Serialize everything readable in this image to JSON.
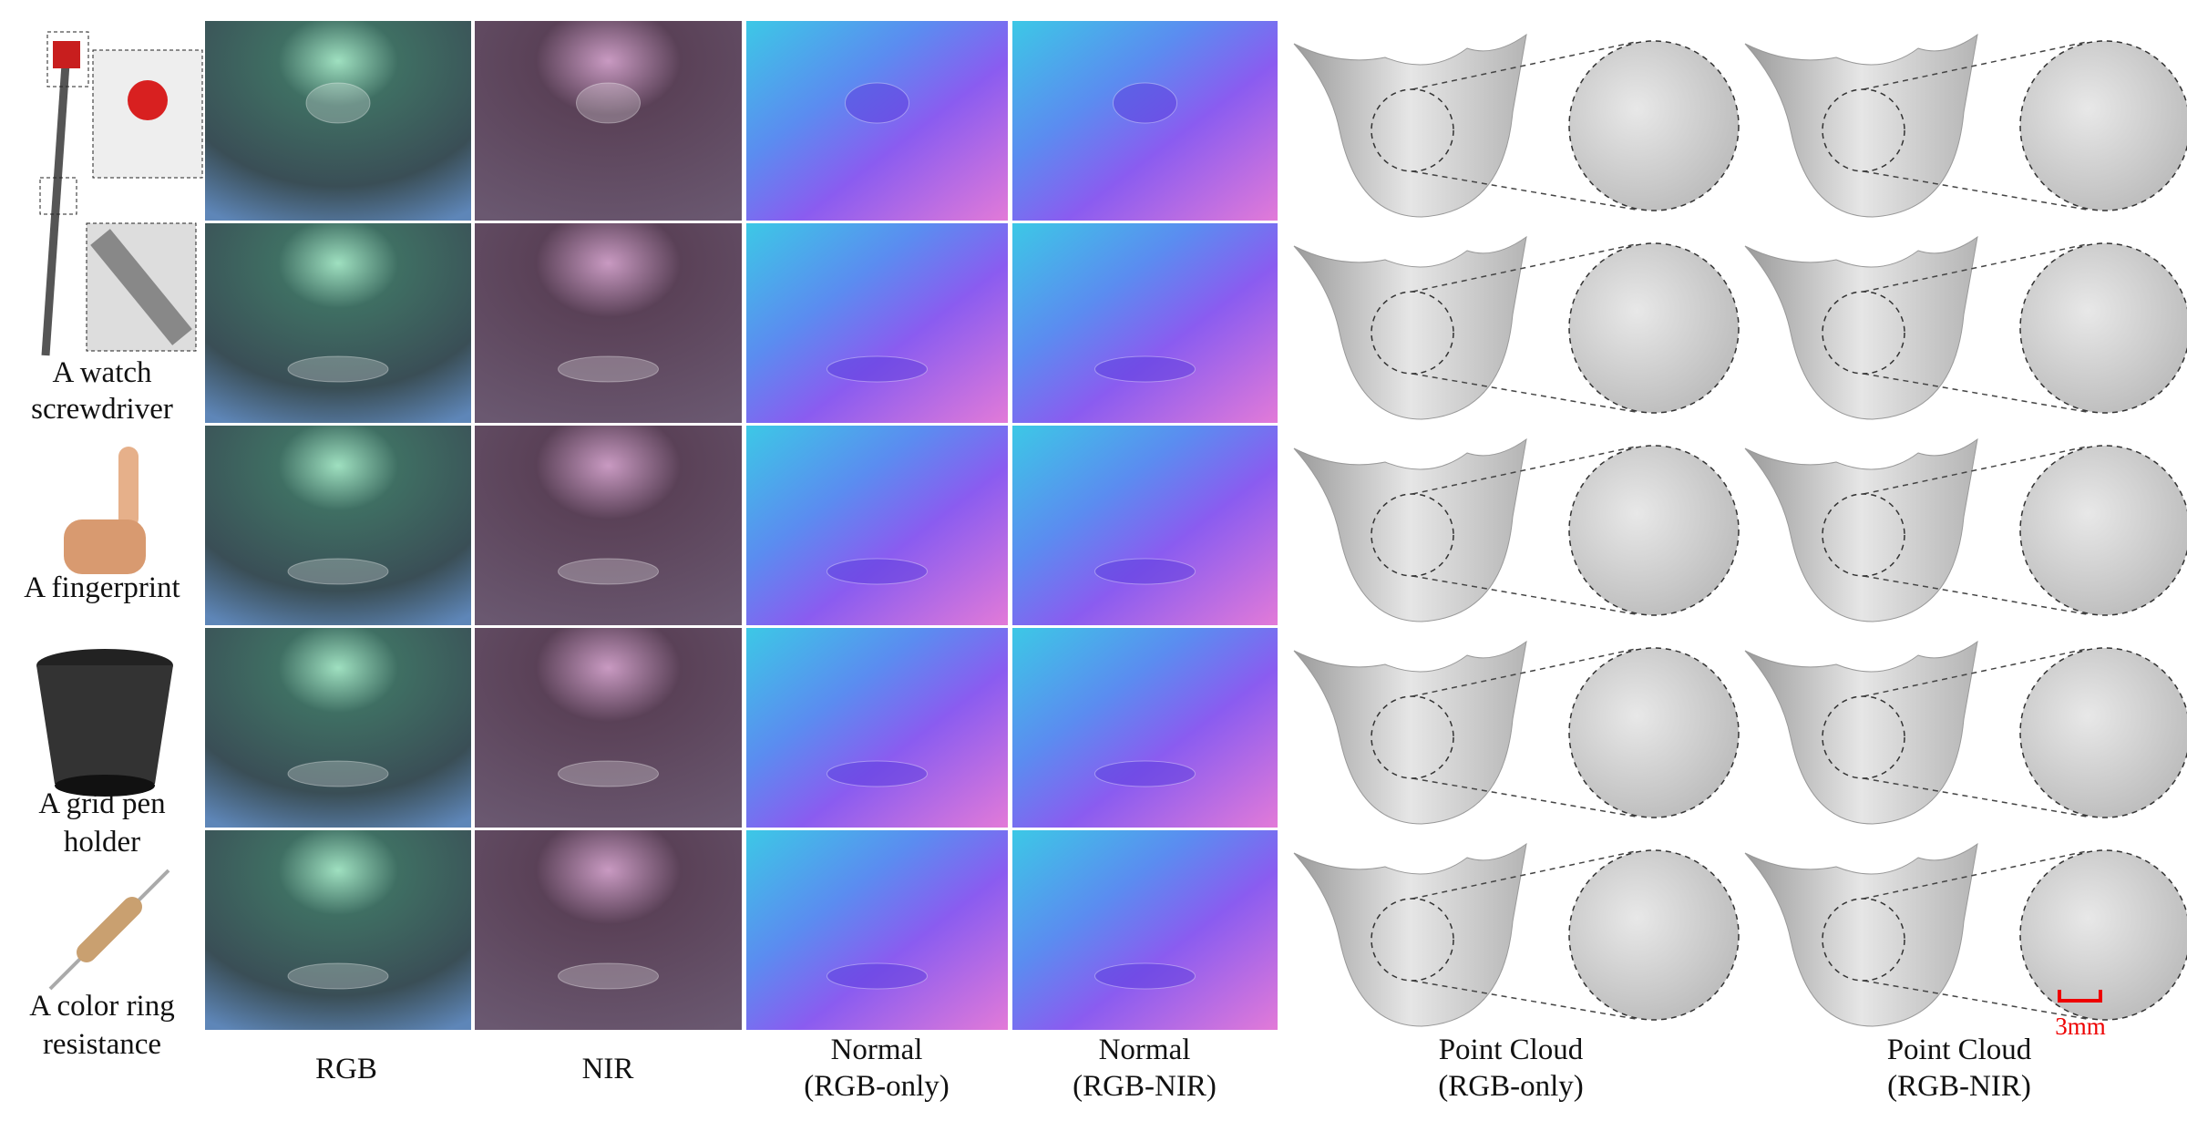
{
  "objects": [
    [
      "A watch",
      "screwdriver"
    ],
    [
      "A fingerprint"
    ],
    [
      "A grid pen",
      "holder"
    ],
    [
      "A color ring",
      "resistance"
    ]
  ],
  "columns": [
    [
      "RGB"
    ],
    [
      "NIR"
    ],
    [
      "Normal",
      "(RGB-only)"
    ],
    [
      "Normal",
      "(RGB-NIR)"
    ],
    [
      "Point Cloud",
      "(RGB-only)"
    ],
    [
      "Point Cloud",
      "(RGB-NIR)"
    ]
  ],
  "scale_bar": "3mm"
}
